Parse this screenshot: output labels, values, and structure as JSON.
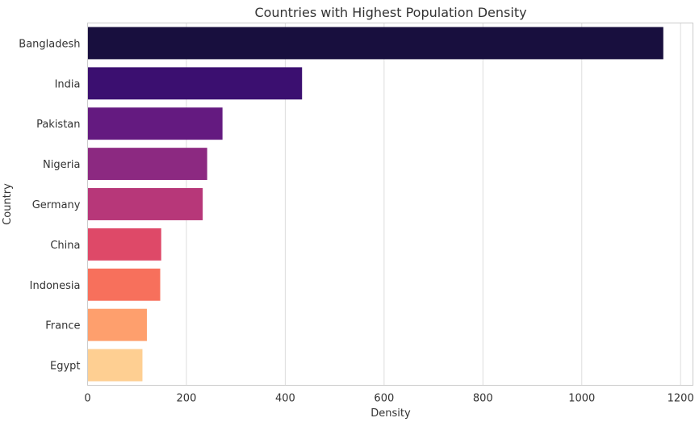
{
  "chart_data": {
    "type": "bar",
    "orientation": "horizontal",
    "title": "Countries with Highest Population Density",
    "xlabel": "Density",
    "ylabel": "Country",
    "xlim": [
      0,
      1225
    ],
    "xticks": [
      0,
      200,
      400,
      600,
      800,
      1000,
      1200
    ],
    "grid": true,
    "categories": [
      "Bangladesh",
      "India",
      "Pakistan",
      "Nigeria",
      "Germany",
      "China",
      "Indonesia",
      "France",
      "Egypt"
    ],
    "values": [
      1165,
      434,
      273,
      242,
      233,
      149,
      147,
      120,
      111
    ],
    "colors": [
      "#180f3e",
      "#3b0f70",
      "#641a80",
      "#8c2981",
      "#b73779",
      "#de4968",
      "#f7705c",
      "#fe9f6d",
      "#fecf92"
    ]
  }
}
